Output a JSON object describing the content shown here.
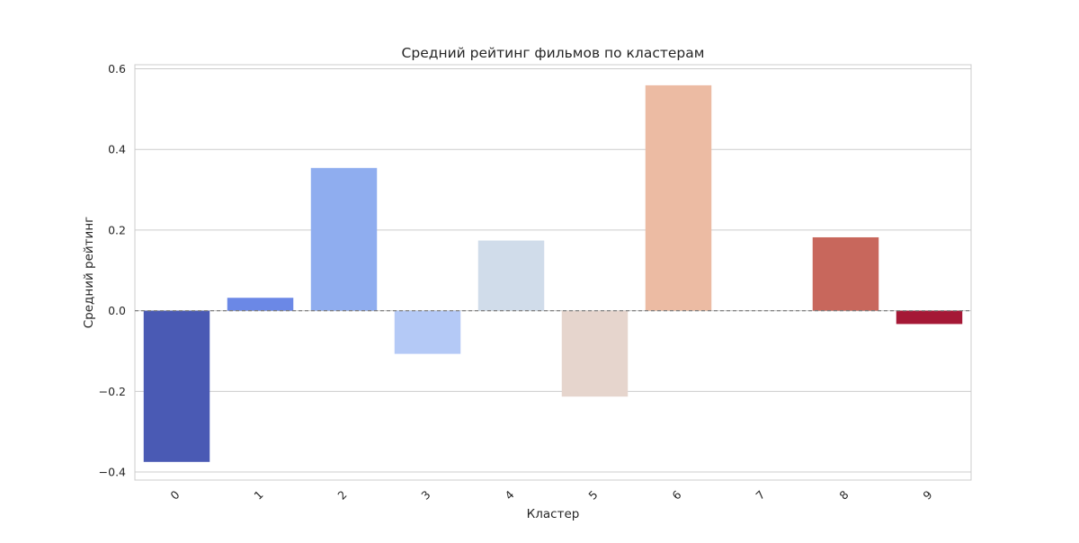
{
  "chart_data": {
    "type": "bar",
    "title": "Средний рейтинг фильмов по кластерам",
    "xlabel": "Кластер",
    "ylabel": "Средний рейтинг",
    "categories": [
      "0",
      "1",
      "2",
      "3",
      "4",
      "5",
      "6",
      "7",
      "8",
      "9"
    ],
    "values": [
      -0.375,
      0.032,
      0.354,
      -0.107,
      0.174,
      -0.213,
      0.559,
      0.0,
      0.182,
      -0.033
    ],
    "colors": [
      "#4a5ab4",
      "#6b88e6",
      "#8fadef",
      "#b4c9f6",
      "#d0dcea",
      "#e6d5cd",
      "#ecbba3",
      "#e89a80",
      "#c8675c",
      "#a51836"
    ],
    "ylim": [
      -0.42,
      0.61
    ],
    "yticks": [
      -0.4,
      -0.2,
      0.0,
      0.2,
      0.4,
      0.6
    ],
    "ytick_labels": [
      "−0.4",
      "−0.2",
      "0.0",
      "0.2",
      "0.4",
      "0.6"
    ],
    "reference_line": 0.0,
    "grid": "horizontal",
    "legend": "none",
    "xtick_rotation": 45
  }
}
